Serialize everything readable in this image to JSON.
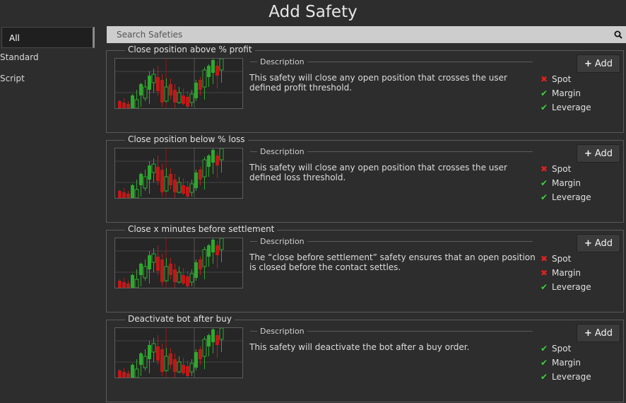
{
  "page": {
    "title": "Add Safety"
  },
  "sidebar": {
    "items": [
      {
        "label": "All",
        "active": true
      },
      {
        "label": "Standard",
        "active": false
      },
      {
        "label": "Script",
        "active": false
      }
    ]
  },
  "search": {
    "placeholder": "Search Safeties",
    "value": ""
  },
  "colors": {
    "background": "#2d2d2d",
    "check": "#3ad43a",
    "cross": "#e02020",
    "candle_up": "#2ea82e",
    "candle_down": "#c01818"
  },
  "icons": {
    "search": "search-icon",
    "add": "plus-icon",
    "supported": "checkmark-icon",
    "unsupported": "cross-icon"
  },
  "common": {
    "description_label": "Description",
    "add_label": "Add"
  },
  "safeties": [
    {
      "title": "Close position above % profit",
      "description": "This safety will close any open position that crosses the user defined profit threshold.",
      "support": [
        {
          "label": "Spot",
          "supported": false
        },
        {
          "label": "Margin",
          "supported": true
        },
        {
          "label": "Leverage",
          "supported": true
        }
      ]
    },
    {
      "title": "Close position below % loss",
      "description": "This safety will close any open position that crosses the user defined loss threshold.",
      "support": [
        {
          "label": "Spot",
          "supported": false
        },
        {
          "label": "Margin",
          "supported": true
        },
        {
          "label": "Leverage",
          "supported": true
        }
      ]
    },
    {
      "title": "Close x minutes before settlement",
      "description": "The “close before settlement” safety ensures that an open position is closed before the contact settles.",
      "support": [
        {
          "label": "Spot",
          "supported": false
        },
        {
          "label": "Margin",
          "supported": false
        },
        {
          "label": "Leverage",
          "supported": true
        }
      ]
    },
    {
      "title": "Deactivate bot after buy",
      "description": "This safety will deactivate the bot after a buy order.",
      "support": [
        {
          "label": "Spot",
          "supported": true
        },
        {
          "label": "Margin",
          "supported": true
        },
        {
          "label": "Leverage",
          "supported": true
        }
      ]
    }
  ]
}
